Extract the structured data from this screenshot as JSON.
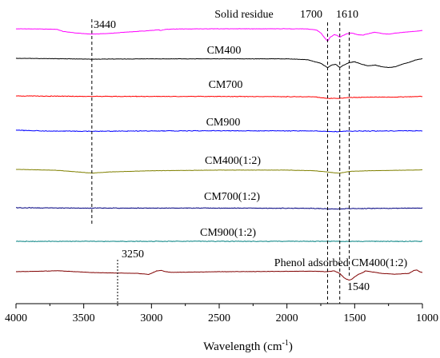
{
  "chart_data": {
    "type": "line",
    "title": "",
    "xlabel_main": "Wavelength (cm",
    "xlabel_sup": "-1",
    "xlabel_close": ")",
    "ylabel": "",
    "xlim": [
      4000,
      1000
    ],
    "x_reversed": true,
    "grid": false,
    "x_ticks": [
      {
        "value": 4000,
        "label": "4000"
      },
      {
        "value": 3500,
        "label": "3500"
      },
      {
        "value": 3000,
        "label": "3000"
      },
      {
        "value": 2500,
        "label": "2500"
      },
      {
        "value": 2000,
        "label": "2000"
      },
      {
        "value": 1500,
        "label": "1500"
      },
      {
        "value": 1000,
        "label": "1000"
      }
    ],
    "series": [
      {
        "name": "Solid residue",
        "color": "#ff00ff",
        "noise": 0.3,
        "points": [
          [
            4000,
            0.0
          ],
          [
            3850,
            0.1
          ],
          [
            3700,
            0.3
          ],
          [
            3650,
            1.6
          ],
          [
            3550,
            2.6
          ],
          [
            3440,
            3.2
          ],
          [
            3300,
            2.7
          ],
          [
            3150,
            1.8
          ],
          [
            3000,
            1.0
          ],
          [
            2950,
            0.6
          ],
          [
            2930,
            1.1
          ],
          [
            2900,
            0.4
          ],
          [
            2800,
            0.1
          ],
          [
            2400,
            0.0
          ],
          [
            2000,
            0.0
          ],
          [
            1850,
            0.1
          ],
          [
            1780,
            0.8
          ],
          [
            1750,
            2.5
          ],
          [
            1720,
            5.5
          ],
          [
            1700,
            7.5
          ],
          [
            1680,
            5.0
          ],
          [
            1650,
            3.5
          ],
          [
            1630,
            4.0
          ],
          [
            1610,
            5.0
          ],
          [
            1590,
            4.2
          ],
          [
            1560,
            3.0
          ],
          [
            1520,
            2.5
          ],
          [
            1480,
            3.5
          ],
          [
            1440,
            3.8
          ],
          [
            1400,
            3.0
          ],
          [
            1350,
            2.0
          ],
          [
            1300,
            2.8
          ],
          [
            1250,
            3.2
          ],
          [
            1200,
            2.6
          ],
          [
            1150,
            2.2
          ],
          [
            1100,
            1.8
          ],
          [
            1050,
            1.5
          ],
          [
            1000,
            1.0
          ]
        ]
      },
      {
        "name": "CM400",
        "color": "#000000",
        "noise": 0.3,
        "points": [
          [
            4000,
            0.0
          ],
          [
            3700,
            0.2
          ],
          [
            3440,
            0.5
          ],
          [
            3000,
            0.3
          ],
          [
            2500,
            0.3
          ],
          [
            2000,
            0.3
          ],
          [
            1850,
            0.8
          ],
          [
            1750,
            3.0
          ],
          [
            1700,
            5.5
          ],
          [
            1670,
            4.0
          ],
          [
            1640,
            3.5
          ],
          [
            1610,
            5.5
          ],
          [
            1580,
            4.0
          ],
          [
            1540,
            2.5
          ],
          [
            1500,
            2.0
          ],
          [
            1450,
            3.5
          ],
          [
            1400,
            4.5
          ],
          [
            1350,
            4.0
          ],
          [
            1300,
            5.0
          ],
          [
            1250,
            5.5
          ],
          [
            1200,
            5.0
          ],
          [
            1150,
            3.5
          ],
          [
            1100,
            2.5
          ],
          [
            1050,
            1.0
          ],
          [
            1000,
            0.2
          ]
        ]
      },
      {
        "name": "CM700",
        "color": "#ff0000",
        "noise": 0.5,
        "points": [
          [
            4000,
            0.0
          ],
          [
            3440,
            0.3
          ],
          [
            2500,
            0.3
          ],
          [
            1800,
            0.5
          ],
          [
            1700,
            1.5
          ],
          [
            1610,
            1.5
          ],
          [
            1540,
            1.0
          ],
          [
            1450,
            0.8
          ],
          [
            1200,
            0.7
          ],
          [
            1000,
            0.3
          ]
        ]
      },
      {
        "name": "CM900",
        "color": "#0000ff",
        "noise": 0.55,
        "points": [
          [
            4000,
            0.0
          ],
          [
            3750,
            0.5
          ],
          [
            3440,
            0.6
          ],
          [
            3000,
            0.4
          ],
          [
            2500,
            0.3
          ],
          [
            1800,
            0.4
          ],
          [
            1700,
            0.8
          ],
          [
            1610,
            0.8
          ],
          [
            1540,
            0.5
          ],
          [
            1000,
            0.3
          ]
        ]
      },
      {
        "name": "CM400(1:2)",
        "color": "#808000",
        "noise": 0.25,
        "points": [
          [
            4000,
            0.0
          ],
          [
            3700,
            0.5
          ],
          [
            3440,
            2.2
          ],
          [
            3300,
            1.5
          ],
          [
            3000,
            0.8
          ],
          [
            2500,
            0.4
          ],
          [
            2000,
            0.4
          ],
          [
            1800,
            0.8
          ],
          [
            1700,
            1.5
          ],
          [
            1650,
            2.0
          ],
          [
            1610,
            2.2
          ],
          [
            1580,
            1.8
          ],
          [
            1540,
            1.2
          ],
          [
            1400,
            0.8
          ],
          [
            1000,
            0.3
          ]
        ]
      },
      {
        "name": "CM700(1:2)",
        "color": "#000080",
        "noise": 0.5,
        "points": [
          [
            4000,
            0.0
          ],
          [
            3440,
            0.2
          ],
          [
            2500,
            0.2
          ],
          [
            1800,
            0.3
          ],
          [
            1700,
            0.7
          ],
          [
            1610,
            0.7
          ],
          [
            1540,
            0.5
          ],
          [
            1000,
            0.2
          ]
        ]
      },
      {
        "name": "CM900(1:2)",
        "color": "#008080",
        "noise": 0.5,
        "points": [
          [
            4000,
            0.0
          ],
          [
            3000,
            0.0
          ],
          [
            2000,
            0.0
          ],
          [
            1000,
            0.0
          ]
        ]
      },
      {
        "name": "Phenol adsorbed CM400(1:2)",
        "color": "#800000",
        "noise": 0.25,
        "points": [
          [
            4000,
            0.0
          ],
          [
            3800,
            -0.3
          ],
          [
            3700,
            -0.6
          ],
          [
            3600,
            -0.2
          ],
          [
            3440,
            0.5
          ],
          [
            3250,
            0.8
          ],
          [
            3100,
            1.0
          ],
          [
            3020,
            1.6
          ],
          [
            2960,
            -0.5
          ],
          [
            2930,
            -0.8
          ],
          [
            2900,
            -0.1
          ],
          [
            2850,
            0.4
          ],
          [
            2500,
            0.0
          ],
          [
            2000,
            -0.2
          ],
          [
            1800,
            -0.3
          ],
          [
            1700,
            0.0
          ],
          [
            1650,
            -0.5
          ],
          [
            1610,
            1.0
          ],
          [
            1580,
            3.5
          ],
          [
            1560,
            4.5
          ],
          [
            1540,
            5.0
          ],
          [
            1520,
            4.5
          ],
          [
            1500,
            3.0
          ],
          [
            1470,
            1.5
          ],
          [
            1440,
            0.5
          ],
          [
            1420,
            -0.5
          ],
          [
            1380,
            0.0
          ],
          [
            1300,
            1.0
          ],
          [
            1200,
            1.5
          ],
          [
            1100,
            1.0
          ],
          [
            1060,
            -0.8
          ],
          [
            1040,
            -1.0
          ],
          [
            1020,
            0.0
          ],
          [
            1000,
            0.5
          ]
        ]
      }
    ],
    "annotations": [
      {
        "label": "3440",
        "x": 3440
      },
      {
        "label": "3250",
        "x": 3250
      },
      {
        "label": "1700",
        "x": 1700
      },
      {
        "label": "1610",
        "x": 1610
      },
      {
        "label": "1540",
        "x": 1540
      }
    ]
  }
}
